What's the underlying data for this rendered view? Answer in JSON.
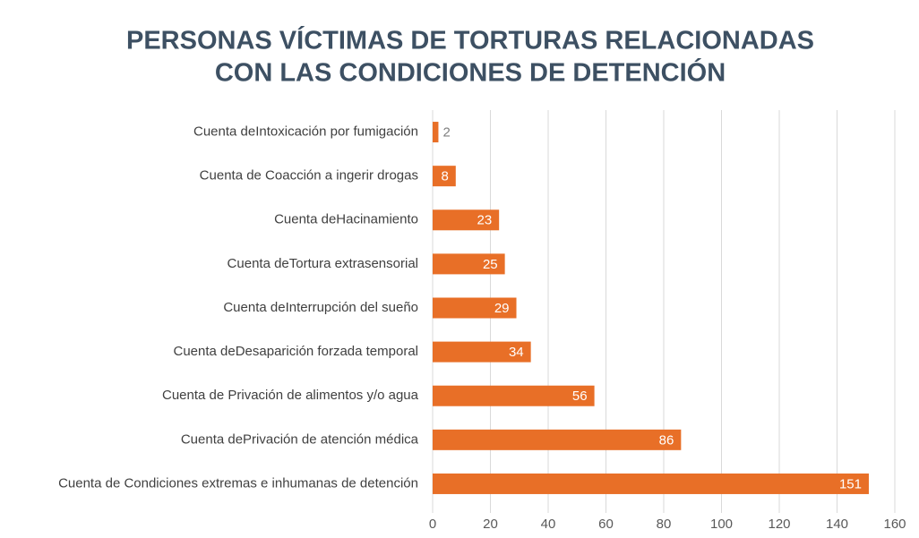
{
  "chart_data": {
    "type": "bar",
    "orientation": "horizontal",
    "title": [
      "PERSONAS VÍCTIMAS DE TORTURAS RELACIONADAS",
      "CON LAS CONDICIONES DE DETENCIÓN"
    ],
    "categories": [
      "Cuenta deIntoxicación por fumigación",
      "Cuenta de Coacción a ingerir drogas",
      "Cuenta deHacinamiento",
      "Cuenta deTortura extrasensorial",
      "Cuenta deInterrupción del sueño",
      "Cuenta deDesaparición forzada temporal",
      "Cuenta de Privación de alimentos y/o agua",
      "Cuenta dePrivación de atención médica",
      "Cuenta de Condiciones extremas e inhumanas de detención"
    ],
    "values": [
      2,
      8,
      23,
      25,
      29,
      34,
      56,
      86,
      151
    ],
    "color": "#e86f27",
    "xlim": [
      0,
      160
    ],
    "xticks": [
      0,
      20,
      40,
      60,
      80,
      100,
      120,
      140,
      160
    ],
    "grid": true
  }
}
